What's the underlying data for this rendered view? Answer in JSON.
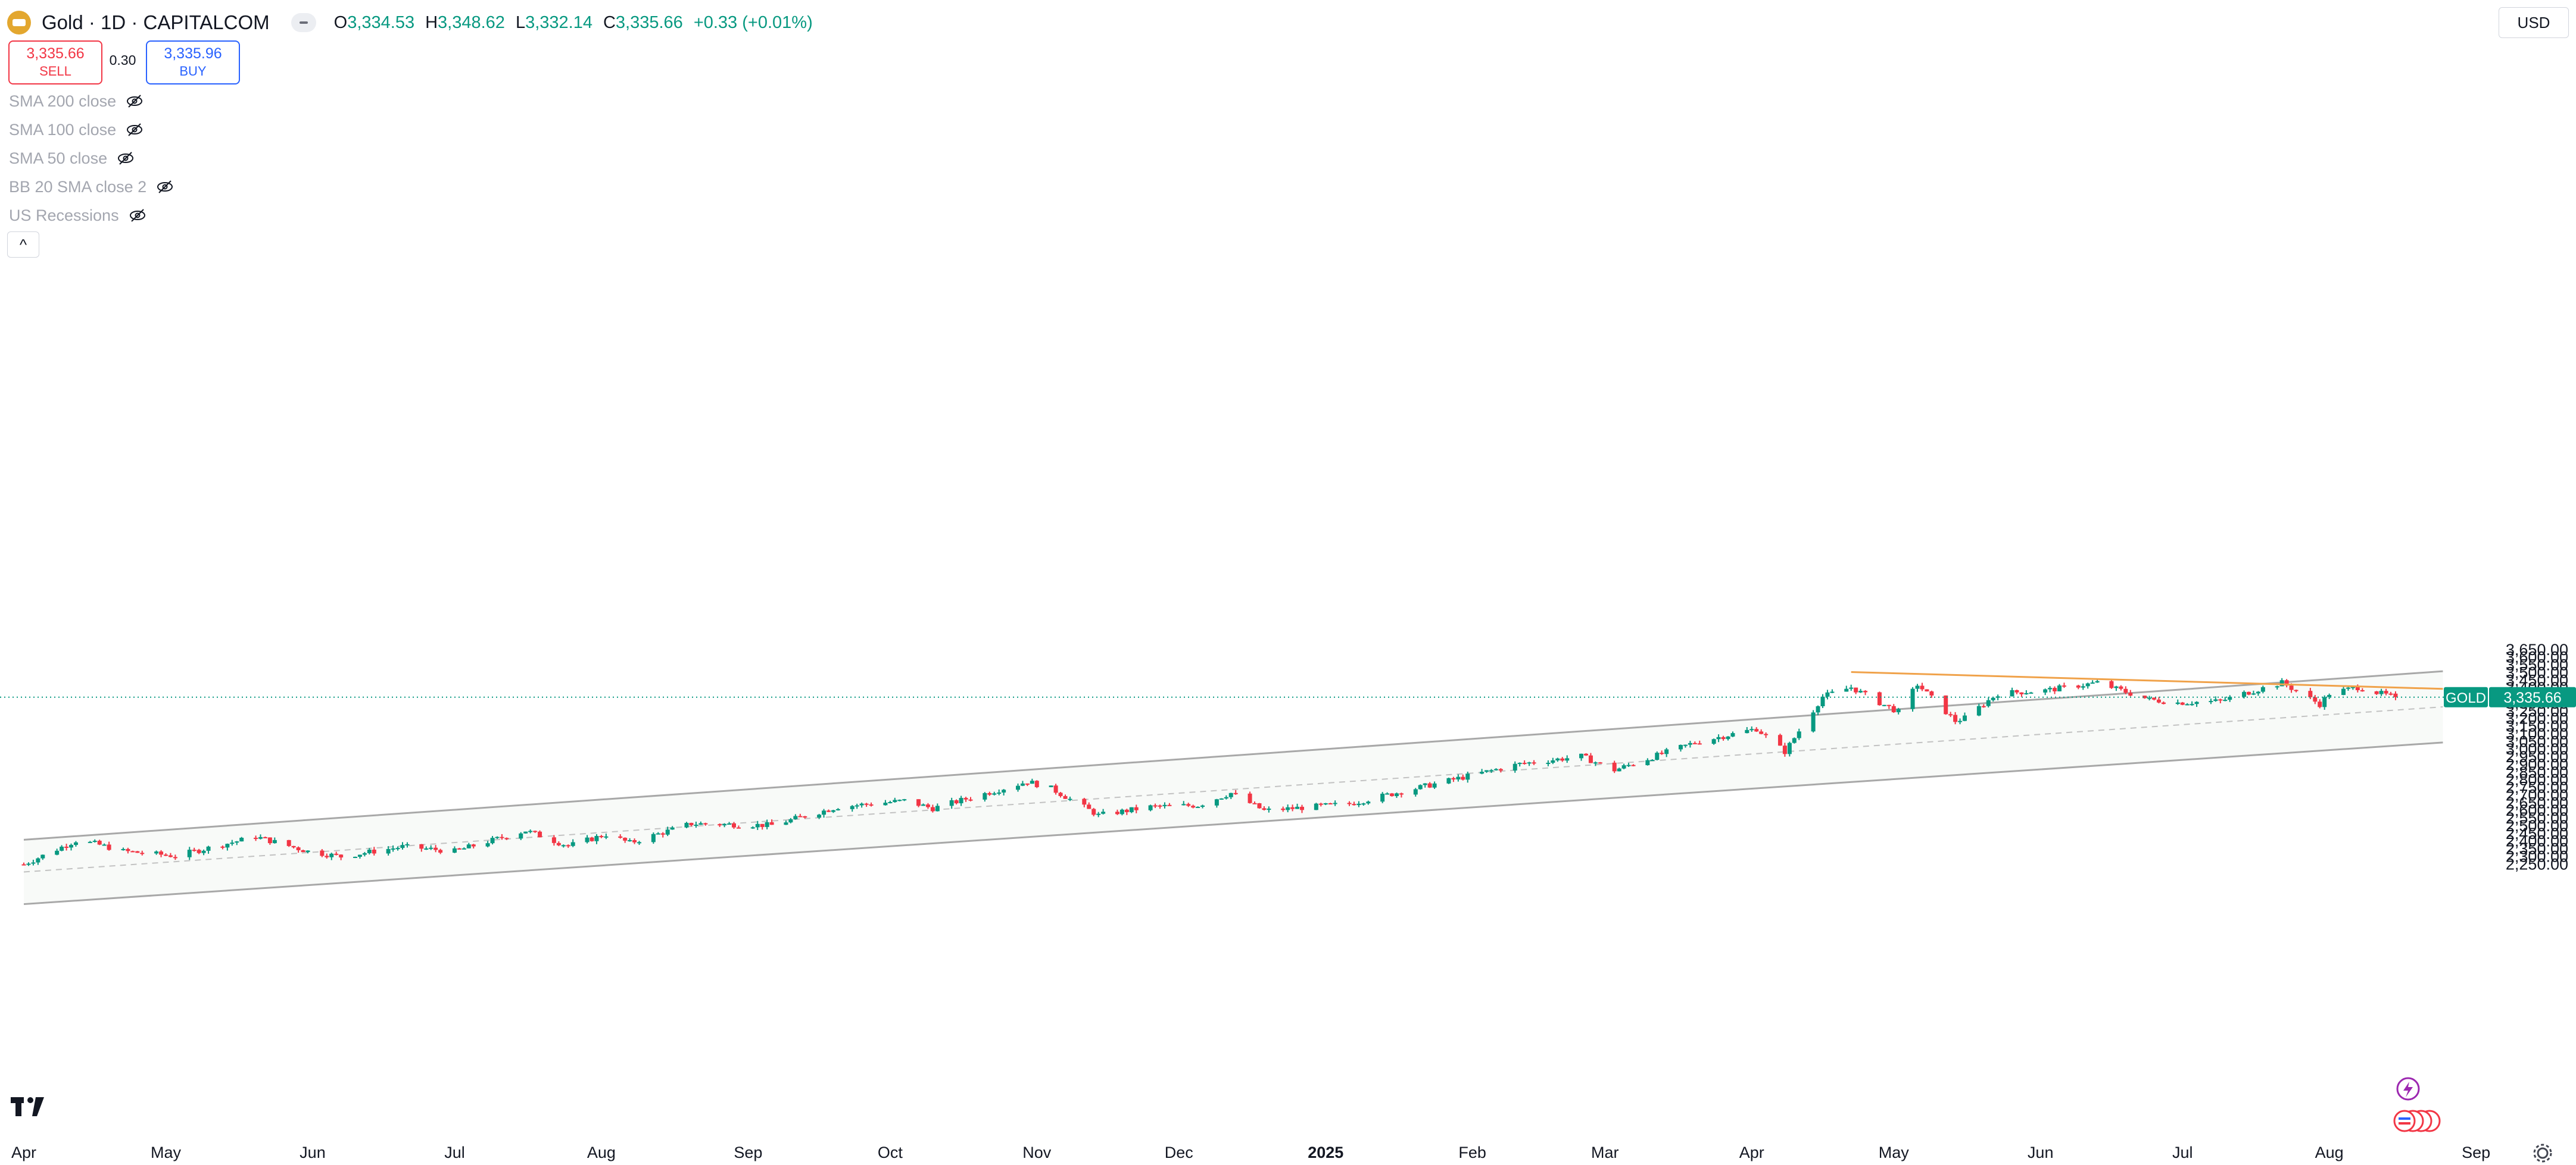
{
  "header": {
    "symbol_title": "Gold · 1D · CAPITALCOM",
    "ohlc": [
      {
        "k": "O",
        "v": "3,334.53"
      },
      {
        "k": "H",
        "v": "3,348.62"
      },
      {
        "k": "L",
        "v": "3,332.14"
      },
      {
        "k": "C",
        "v": "3,335.66"
      }
    ],
    "change": "+0.33 (+0.01%)"
  },
  "trade": {
    "sell_price": "3,335.66",
    "sell_label": "SELL",
    "spread": "0.30",
    "buy_price": "3,335.96",
    "buy_label": "BUY"
  },
  "indicators": [
    {
      "label": "SMA 200 close"
    },
    {
      "label": "SMA 100 close"
    },
    {
      "label": "SMA 50 close"
    },
    {
      "label": "BB 20 SMA close 2"
    },
    {
      "label": "US Recessions"
    }
  ],
  "collapse_symbol": "^",
  "currency": "USD",
  "icons": [
    "tradingview-logo-icon",
    "eye-hidden-icon",
    "lightning-icon",
    "flag-icon",
    "gear-icon"
  ],
  "colors": {
    "up": "#089981",
    "down": "#f23645",
    "channel": "#a8a8a8",
    "trend": "#f0a24a",
    "sell": "#f23645",
    "buy": "#2962ff"
  },
  "chart_data": {
    "type": "candlestick",
    "title": "Gold · 1D · CAPITALCOM",
    "ylim": [
      2225,
      3650
    ],
    "y_ticks": [
      "3,650.00",
      "3,600.00",
      "3,550.00",
      "3,500.00",
      "3,450.00",
      "3,400.00",
      "3,350.00",
      "3,300.00",
      "3,250.00",
      "3,200.00",
      "3,150.00",
      "3,100.00",
      "3,050.00",
      "3,000.00",
      "2,950.00",
      "2,900.00",
      "2,850.00",
      "2,800.00",
      "2,750.00",
      "2,700.00",
      "2,650.00",
      "2,600.00",
      "2,550.00",
      "2,500.00",
      "2,450.00",
      "2,400.00",
      "2,350.00",
      "2,300.00",
      "2,250.00"
    ],
    "x_ticks": [
      {
        "label": "Apr",
        "date": "2024-04-01"
      },
      {
        "label": "May",
        "date": "2024-05-01"
      },
      {
        "label": "Jun",
        "date": "2024-06-01"
      },
      {
        "label": "Jul",
        "date": "2024-07-01"
      },
      {
        "label": "Aug",
        "date": "2024-08-01"
      },
      {
        "label": "Sep",
        "date": "2024-09-01"
      },
      {
        "label": "Oct",
        "date": "2024-10-01"
      },
      {
        "label": "Nov",
        "date": "2024-11-01"
      },
      {
        "label": "Dec",
        "date": "2024-12-01"
      },
      {
        "label": "2025",
        "date": "2025-01-01",
        "bold": true
      },
      {
        "label": "Feb",
        "date": "2025-02-01"
      },
      {
        "label": "Mar",
        "date": "2025-03-01"
      },
      {
        "label": "Apr",
        "date": "2025-04-01"
      },
      {
        "label": "May",
        "date": "2025-05-01"
      },
      {
        "label": "Jun",
        "date": "2025-06-01"
      },
      {
        "label": "Jul",
        "date": "2025-07-01"
      },
      {
        "label": "Aug",
        "date": "2025-08-01"
      },
      {
        "label": "Sep",
        "date": "2025-09-01"
      }
    ],
    "last_price": {
      "label": "GOLD",
      "value": 3335.66,
      "text": "3,335.66"
    },
    "anchors": [
      [
        "2024-04-01",
        2245
      ],
      [
        "2024-04-12",
        2400
      ],
      [
        "2024-04-16",
        2380
      ],
      [
        "2024-04-22",
        2330
      ],
      [
        "2024-05-03",
        2300
      ],
      [
        "2024-05-20",
        2425
      ],
      [
        "2024-05-31",
        2330
      ],
      [
        "2024-06-07",
        2295
      ],
      [
        "2024-06-20",
        2360
      ],
      [
        "2024-07-01",
        2330
      ],
      [
        "2024-07-16",
        2465
      ],
      [
        "2024-07-25",
        2365
      ],
      [
        "2024-08-02",
        2440
      ],
      [
        "2024-08-07",
        2385
      ],
      [
        "2024-08-20",
        2510
      ],
      [
        "2024-09-06",
        2500
      ],
      [
        "2024-09-20",
        2620
      ],
      [
        "2024-10-04",
        2660
      ],
      [
        "2024-10-10",
        2610
      ],
      [
        "2024-10-30",
        2785
      ],
      [
        "2024-11-04",
        2740
      ],
      [
        "2024-11-14",
        2565
      ],
      [
        "2024-11-25",
        2620
      ],
      [
        "2024-12-05",
        2630
      ],
      [
        "2024-12-12",
        2710
      ],
      [
        "2024-12-19",
        2595
      ],
      [
        "2025-01-06",
        2640
      ],
      [
        "2025-01-22",
        2755
      ],
      [
        "2025-02-11",
        2900
      ],
      [
        "2025-02-24",
        2950
      ],
      [
        "2025-03-03",
        2860
      ],
      [
        "2025-03-20",
        3040
      ],
      [
        "2025-04-02",
        3130
      ],
      [
        "2025-04-08",
        2980
      ],
      [
        "2025-04-16",
        3340
      ],
      [
        "2025-04-22",
        3400
      ],
      [
        "2025-04-28",
        3300
      ],
      [
        "2025-05-02",
        3240
      ],
      [
        "2025-05-06",
        3420
      ],
      [
        "2025-05-14",
        3180
      ],
      [
        "2025-05-16",
        3200
      ],
      [
        "2025-05-23",
        3360
      ],
      [
        "2025-06-02",
        3380
      ],
      [
        "2025-06-13",
        3430
      ],
      [
        "2025-06-24",
        3320
      ],
      [
        "2025-06-30",
        3300
      ],
      [
        "2025-07-09",
        3310
      ],
      [
        "2025-07-14",
        3360
      ],
      [
        "2025-07-22",
        3430
      ],
      [
        "2025-07-30",
        3290
      ],
      [
        "2025-08-01",
        3360
      ],
      [
        "2025-08-07",
        3400
      ],
      [
        "2025-08-13",
        3350
      ],
      [
        "2025-08-15",
        3335.66
      ]
    ],
    "candles_generated": {
      "seed": 7,
      "body_fraction": 0.6,
      "wick_fraction": 0.45
    },
    "channel": {
      "upper": [
        [
          "2024-04-01",
          2405
        ],
        [
          "2025-08-25",
          3505
        ]
      ],
      "lower": [
        [
          "2024-04-01",
          1985
        ],
        [
          "2025-08-25",
          3040
        ]
      ],
      "center_dashed": true,
      "shade_color": "#f8faf8"
    },
    "trendline": [
      [
        "2025-04-22",
        3500
      ],
      [
        "2025-08-25",
        3390
      ]
    ],
    "grid": false,
    "legend": "none"
  }
}
